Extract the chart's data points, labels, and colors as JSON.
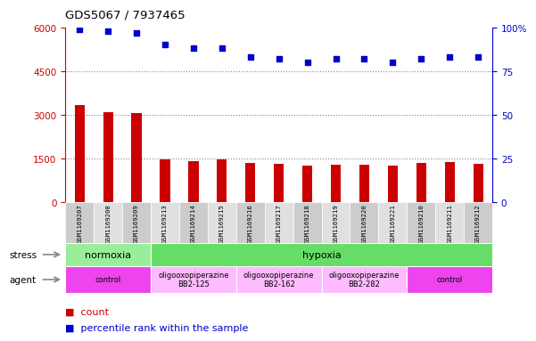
{
  "title": "GDS5067 / 7937465",
  "samples": [
    "GSM1169207",
    "GSM1169208",
    "GSM1169209",
    "GSM1169213",
    "GSM1169214",
    "GSM1169215",
    "GSM1169216",
    "GSM1169217",
    "GSM1169218",
    "GSM1169219",
    "GSM1169220",
    "GSM1169221",
    "GSM1169210",
    "GSM1169211",
    "GSM1169212"
  ],
  "counts": [
    3350,
    3100,
    3050,
    1480,
    1400,
    1480,
    1350,
    1310,
    1270,
    1290,
    1290,
    1250,
    1360,
    1380,
    1330
  ],
  "percentiles": [
    99,
    98,
    97,
    90,
    88,
    88,
    83,
    82,
    80,
    82,
    82,
    80,
    82,
    83,
    83
  ],
  "bar_color": "#cc0000",
  "dot_color": "#0000cc",
  "ylim_left": [
    0,
    6000
  ],
  "ylim_right": [
    0,
    100
  ],
  "yticks_left": [
    0,
    1500,
    3000,
    4500,
    6000
  ],
  "yticks_right": [
    0,
    25,
    50,
    75,
    100
  ],
  "stress_groups": [
    {
      "label": "normoxia",
      "start": 0,
      "end": 3,
      "color": "#99ee99"
    },
    {
      "label": "hypoxia",
      "start": 3,
      "end": 15,
      "color": "#66dd66"
    }
  ],
  "agent_groups": [
    {
      "label": "control",
      "start": 0,
      "end": 3,
      "color": "#ee44ee"
    },
    {
      "label": "oligooxopiperazine\nBB2-125",
      "start": 3,
      "end": 6,
      "color": "#ffbbff"
    },
    {
      "label": "oligooxopiperazine\nBB2-162",
      "start": 6,
      "end": 9,
      "color": "#ffbbff"
    },
    {
      "label": "oligooxopiperazine\nBB2-282",
      "start": 9,
      "end": 12,
      "color": "#ffbbff"
    },
    {
      "label": "control",
      "start": 12,
      "end": 15,
      "color": "#ee44ee"
    }
  ],
  "legend_count_color": "#cc0000",
  "legend_dot_color": "#0000cc",
  "axis_left_color": "#cc0000",
  "axis_right_color": "#0000cc"
}
